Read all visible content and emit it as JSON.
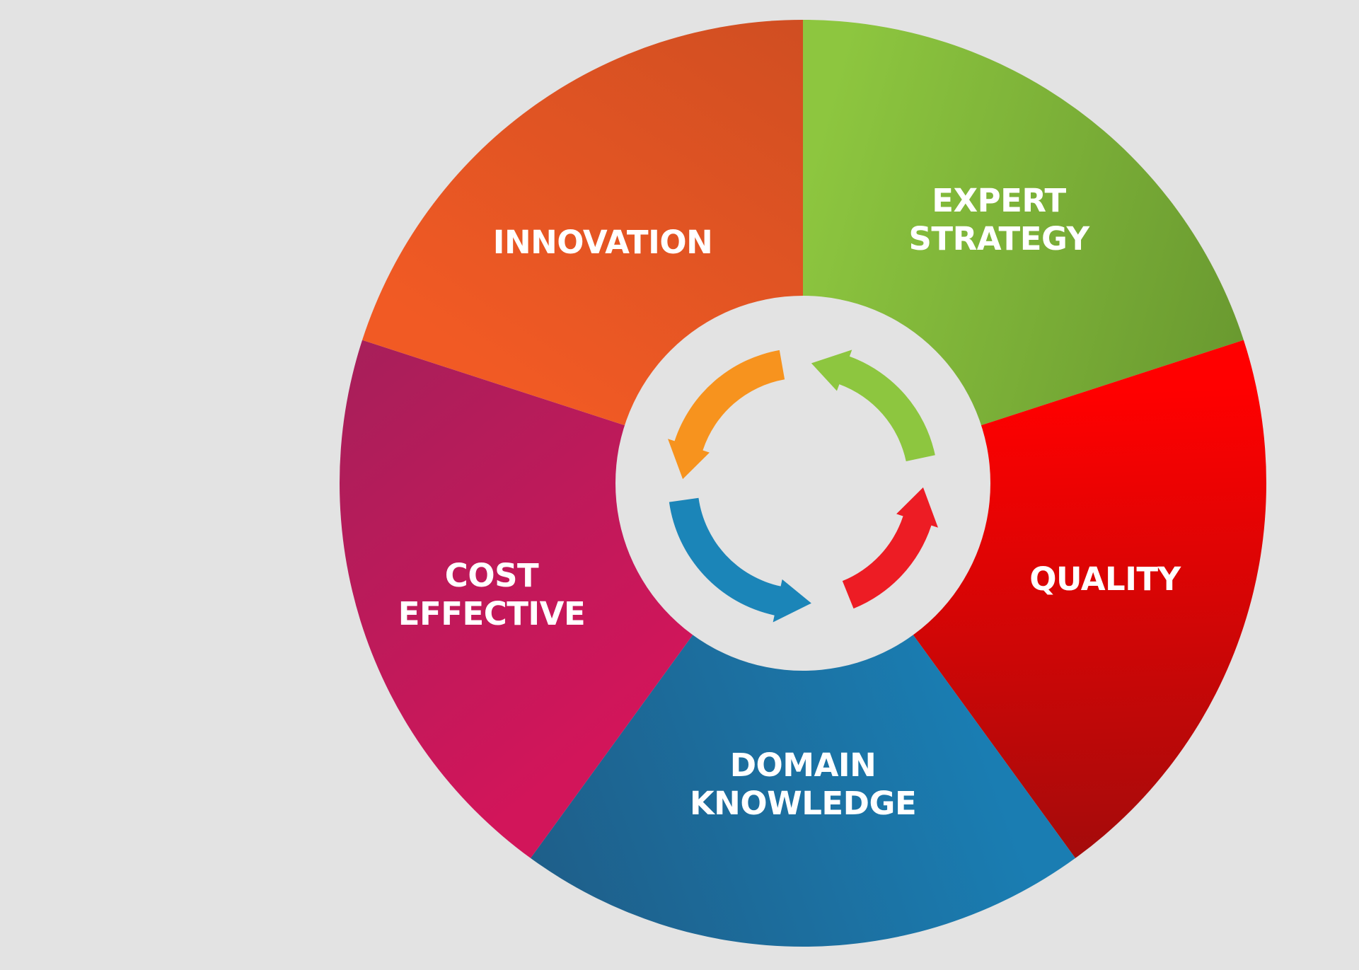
{
  "diagram": {
    "type": "segmented-wheel",
    "center_cycle": {
      "arrows": [
        {
          "name": "orange-arrow",
          "color": "#f7931e",
          "direction": "counter-clockwise"
        },
        {
          "name": "green-arrow",
          "color": "#8dc63f",
          "direction": "counter-clockwise"
        },
        {
          "name": "red-arrow",
          "color": "#ed1c24",
          "direction": "counter-clockwise"
        },
        {
          "name": "blue-arrow",
          "color": "#1b85b8",
          "direction": "counter-clockwise"
        }
      ],
      "background": "#e3e3e3"
    },
    "segments": [
      {
        "id": "expert-strategy",
        "lines": [
          "EXPERT",
          "STRATEGY"
        ],
        "color": "#8dc63f",
        "color_dark": "#6a9a30"
      },
      {
        "id": "quality",
        "lines": [
          "QUALITY"
        ],
        "color": "#ff0000",
        "color_dark": "#a50b0b"
      },
      {
        "id": "domain-knowledge",
        "lines": [
          "DOMAIN",
          "KNOWLEDGE"
        ],
        "color": "#1a7db2",
        "color_dark": "#1e5f8a"
      },
      {
        "id": "cost-effective",
        "lines": [
          "COST",
          "EFFECTIVE"
        ],
        "color": "#d2155a",
        "color_dark": "#a81f5a"
      },
      {
        "id": "innovation",
        "lines": [
          "INNOVATION"
        ],
        "color": "#f15a24",
        "color_dark": "#d04e22"
      }
    ]
  }
}
